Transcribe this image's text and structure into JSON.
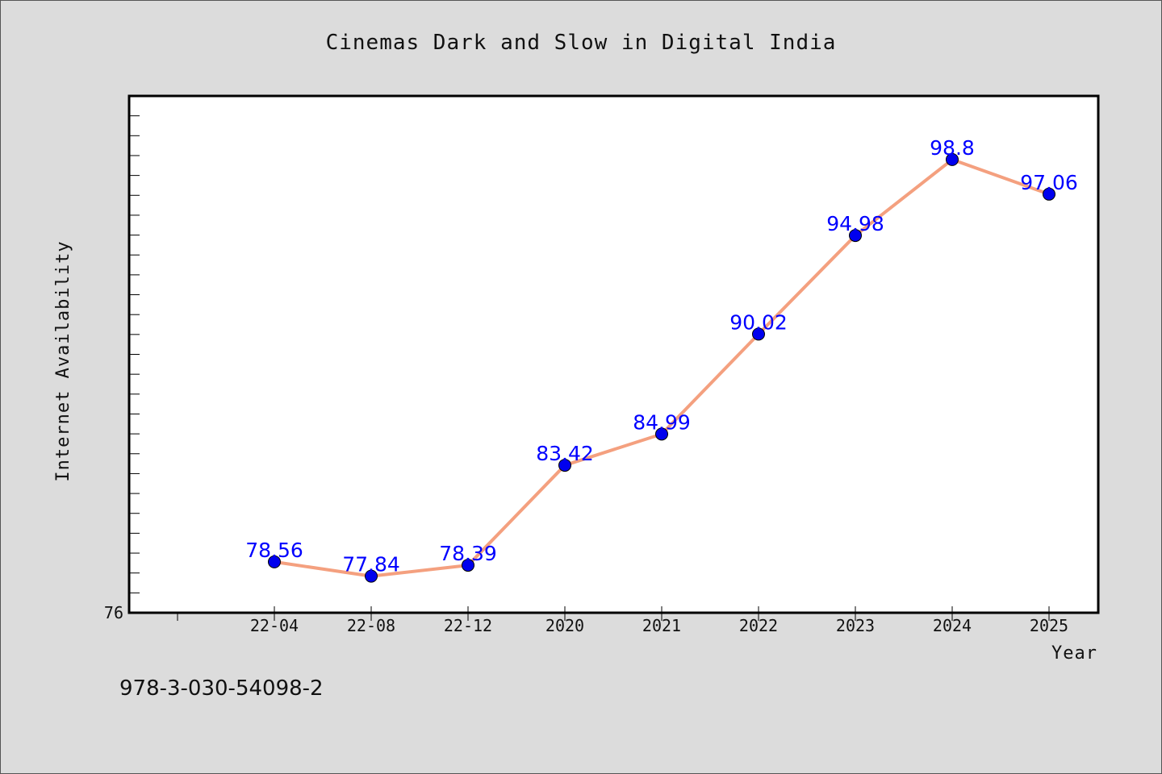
{
  "chart_data": {
    "type": "line",
    "title": "Cinemas Dark and Slow in Digital India",
    "xlabel": "Year",
    "ylabel": "Internet Availability",
    "categories": [
      "22-04",
      "22-08",
      "22-12",
      "2020",
      "2021",
      "2022",
      "2023",
      "2024",
      "2025"
    ],
    "series": [
      {
        "values": [
          78.56,
          77.84,
          78.39,
          83.42,
          84.99,
          90.02,
          94.98,
          98.8,
          97.06
        ],
        "labels": [
          "78.56",
          "77.84",
          "78.39",
          "83.42",
          "84.99",
          "90.02",
          "94.98",
          "98.8",
          "97.06"
        ]
      }
    ],
    "ylim": [
      76,
      102
    ],
    "y_tick_labels": [
      "76"
    ],
    "grid": false,
    "legend": "none",
    "line_color": "#f4a07f",
    "marker_color": "#0000ee",
    "label_color": "#0000ff"
  },
  "footnote": "978-3-030-54098-2"
}
